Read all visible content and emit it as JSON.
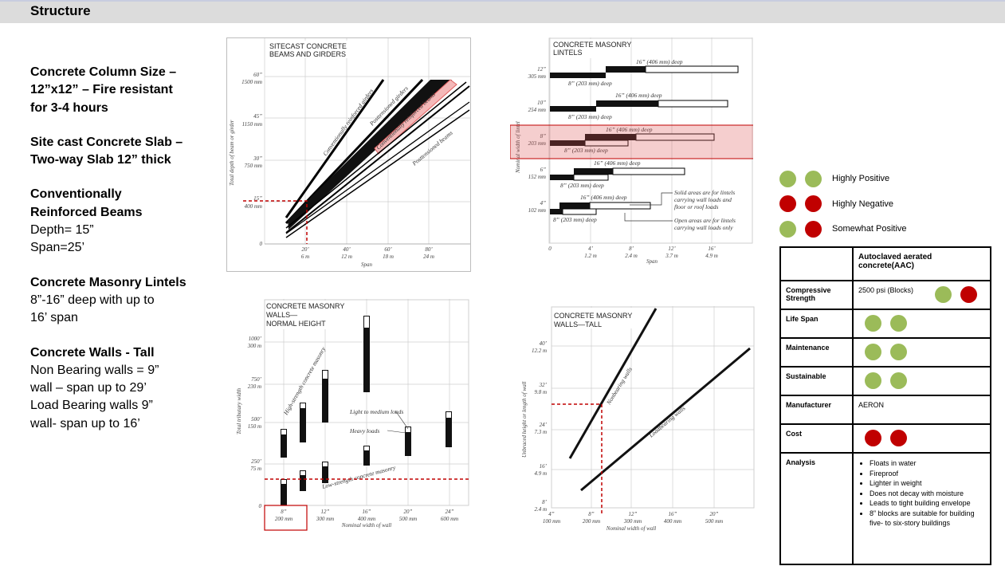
{
  "page": {
    "title": "Structure"
  },
  "left": {
    "b1_h1": "Concrete Column Size –",
    "b1_h2": "12”x12” – Fire resistant",
    "b1_h3": "for 3-4 hours",
    "b2_h1": "Site cast Concrete Slab –",
    "b2_h2": "Two-way Slab 12” thick",
    "b3_h1": "Conventionally",
    "b3_h2": "Reinforced Beams",
    "b3_l1": "Depth= 15”",
    "b3_l2": "Span=25’",
    "b4_h1": "Concrete Masonry Lintels",
    "b4_l1": "8”-16” deep with up to",
    "b4_l2": "16’ span",
    "b5_h1": "Concrete Walls - Tall",
    "b5_l1": "Non Bearing walls = 9”",
    "b5_l2": "wall – span up to 29’",
    "b5_l3": "Load Bearing walls 9”",
    "b5_l4": "wall- span up to 16’"
  },
  "charts": {
    "beams": {
      "title1": "SITECAST CONCRETE",
      "title2": "BEAMS AND GIRDERS",
      "ylabel": "Total depth of beam or girder",
      "xlabel": "Span",
      "y_ticks": [
        [
          "60”",
          "1500 mm"
        ],
        [
          "45”",
          "1150 mm"
        ],
        [
          "30”",
          "750 mm"
        ],
        [
          "15”",
          "400 mm"
        ],
        [
          "0",
          ""
        ]
      ],
      "x_ticks": [
        [
          "20’",
          "6 m"
        ],
        [
          "40’",
          "12 m"
        ],
        [
          "60’",
          "18 m"
        ],
        [
          "80’",
          "24 m"
        ]
      ],
      "labels": [
        "Conventionally reinforced girders",
        "Posttensioned girders",
        "Conventionally reinforced beams",
        "Posttensioned beams"
      ]
    },
    "lintels": {
      "title1": "CONCRETE MASONRY",
      "title2": "LINTELS",
      "ylabel": "Nominal width of lintel",
      "xlabel": "Span",
      "y_ticks": [
        [
          "12”",
          "305 mm"
        ],
        [
          "10”",
          "254 mm"
        ],
        [
          "8”",
          "203 mm"
        ],
        [
          "6”",
          "152 mm"
        ],
        [
          "4”",
          "102 mm"
        ]
      ],
      "x_ticks": [
        [
          "0",
          ""
        ],
        [
          "4’",
          "1.2 m"
        ],
        [
          "8’",
          "2.4 m"
        ],
        [
          "12’",
          "3.7 m"
        ],
        [
          "16’",
          "4.9 m"
        ]
      ],
      "deep16": "16” (406 mm) deep",
      "deep8": "8” (203 mm) deep",
      "note1": [
        "Solid areas are for lintels",
        "carrying wall loads and",
        "floor or roof loads"
      ],
      "note2": [
        "Open areas are for lintels",
        "carrying wall loads only"
      ]
    },
    "walls_normal": {
      "title1": "CONCRETE MASONRY",
      "title2": "WALLS—",
      "title3": "NORMAL HEIGHT",
      "ylabel": "Total tributary width",
      "xlabel": "Nominal width of wall",
      "y_ticks": [
        [
          "1000’",
          "300 m"
        ],
        [
          "750’",
          "230 m"
        ],
        [
          "500’",
          "150 m"
        ],
        [
          "250’",
          "75 m"
        ],
        [
          "0",
          ""
        ]
      ],
      "x_ticks": [
        [
          "8”",
          "200 mm"
        ],
        [
          "12”",
          "300 mm"
        ],
        [
          "16”",
          "400 mm"
        ],
        [
          "20”",
          "500 mm"
        ],
        [
          "24”",
          "600 mm"
        ]
      ],
      "labels": [
        "High-strength concrete masonry",
        "Light to medium loads",
        "Heavy loads",
        "Low-strength concrete masonry"
      ]
    },
    "walls_tall": {
      "title1": "CONCRETE MASONRY",
      "title2": "WALLS—TALL",
      "ylabel": "Unbraced height or length of wall",
      "xlabel": "Nominal width of wall",
      "y_ticks": [
        [
          "40’",
          "12.2 m"
        ],
        [
          "32’",
          "9.8 m"
        ],
        [
          "24’",
          "7.3 m"
        ],
        [
          "16’",
          "4.9 m"
        ],
        [
          "8’",
          "2.4 m"
        ]
      ],
      "x_ticks": [
        [
          "4”",
          "100 mm"
        ],
        [
          "8”",
          "200 mm"
        ],
        [
          "12”",
          "300 mm"
        ],
        [
          "16”",
          "400 mm"
        ],
        [
          "20”",
          "500 mm"
        ]
      ],
      "labels": [
        "Nonbearing walls",
        "Loadbearing walls"
      ]
    }
  },
  "legend": {
    "highly_positive": "Highly Positive",
    "highly_negative": "Highly Negative",
    "somewhat_positive": "Somewhat Positive",
    "green_color": "#9bbb59",
    "red_color": "#c00000"
  },
  "table": {
    "header": "Autoclaved aerated concrete(AAC)",
    "rows": {
      "compressive": {
        "label": "Compressive Strength",
        "value": "2500 psi (Blocks)",
        "rating": "somewhat positive"
      },
      "lifespan": {
        "label": "Life Span",
        "rating": "highly positive"
      },
      "maintenance": {
        "label": "Maintenance",
        "rating": "highly positive"
      },
      "sustainable": {
        "label": "Sustainable",
        "rating": "highly positive"
      },
      "manufacturer": {
        "label": "Manufacturer",
        "value": "AERON"
      },
      "cost": {
        "label": "Cost",
        "rating": "highly negative"
      },
      "analysis": {
        "label": "Analysis",
        "items": [
          "Floats in water",
          "Fireproof",
          "Lighter in weight",
          "Does not decay with moisture",
          "Leads to tight building envelope",
          "8” blocks are suitable for building five- to six-story buildings"
        ]
      }
    }
  }
}
